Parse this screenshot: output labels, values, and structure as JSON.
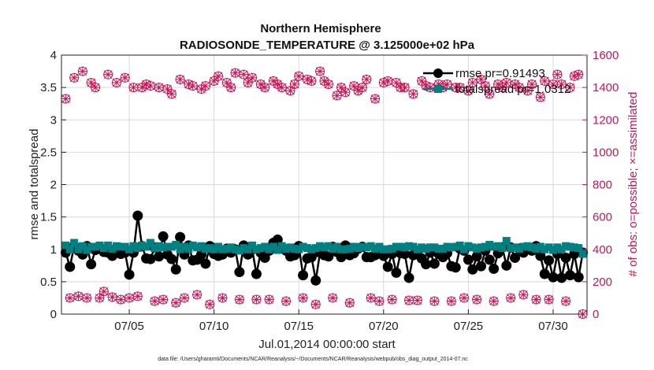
{
  "chart_data": {
    "type": "line",
    "title": "Northern Hemisphere",
    "subtitle": "RADIOSONDE_TEMPERATURE @ 3.125000e+02 hPa",
    "xlabel": "Jul.01,2014 00:00:00 start",
    "ylabel": "rmse and totalspread",
    "ylabel_right": "# of obs: o=possible; ×=assimilated",
    "footer": "data file: /Users/gharamti/Documents/NCAR/Reanalysis/~/Documents/NCAR/Reanalysis/webpub/obs_diag_output_2014-07.nc",
    "xlim": [
      1,
      32
    ],
    "ylim": [
      0,
      4
    ],
    "ylim_right": [
      0,
      1600
    ],
    "xticks": [
      5,
      10,
      15,
      20,
      25,
      30
    ],
    "xtick_labels": [
      "07/05",
      "07/10",
      "07/15",
      "07/20",
      "07/25",
      "07/30"
    ],
    "yticks": [
      "0",
      "0.5",
      "1",
      "1.5",
      "2",
      "2.5",
      "3",
      "3.5",
      "4"
    ],
    "yticks_right": [
      "0",
      "200",
      "400",
      "600",
      "800",
      "1000",
      "1200",
      "1400",
      "1600"
    ],
    "grid": true,
    "legend_position": "top-right",
    "colors": {
      "rmse": "#000000",
      "spread": "#008080",
      "obs": "#cc1455"
    },
    "series": [
      {
        "name": "rmse",
        "legend": "rmse pr=0.91493",
        "axis": "left",
        "x": [
          1.25,
          1.5,
          1.75,
          2,
          2.25,
          2.5,
          2.75,
          3,
          3.25,
          3.5,
          3.75,
          4,
          4.25,
          4.5,
          4.75,
          5,
          5.25,
          5.5,
          5.75,
          6,
          6.25,
          6.5,
          6.75,
          7,
          7.25,
          7.5,
          7.75,
          8,
          8.25,
          8.5,
          8.75,
          9,
          9.25,
          9.5,
          9.75,
          10,
          10.25,
          10.5,
          10.75,
          11,
          11.25,
          11.5,
          11.75,
          12,
          12.25,
          12.5,
          12.75,
          13,
          13.25,
          13.5,
          13.75,
          14,
          14.25,
          14.5,
          14.75,
          15,
          15.25,
          15.5,
          15.75,
          16,
          16.25,
          16.5,
          16.75,
          17,
          17.25,
          17.5,
          17.75,
          18,
          18.25,
          18.5,
          18.75,
          19,
          19.25,
          19.5,
          19.75,
          20,
          20.25,
          20.5,
          20.75,
          21,
          21.25,
          21.5,
          21.75,
          22,
          22.25,
          22.5,
          22.75,
          23,
          23.25,
          23.5,
          23.75,
          24,
          24.25,
          24.5,
          24.75,
          25,
          25.25,
          25.5,
          25.75,
          26,
          26.25,
          26.5,
          26.75,
          27,
          27.25,
          27.5,
          27.75,
          28,
          28.25,
          28.5,
          28.75,
          29,
          29.25,
          29.5,
          29.75,
          30,
          30.25,
          30.5,
          30.75,
          31,
          31.25,
          31.5,
          31.75
        ],
        "values": [
          0.95,
          0.73,
          1.05,
          0.98,
          0.92,
          1.05,
          0.77,
          0.99,
          1.04,
          0.96,
          0.95,
          0.9,
          0.99,
          0.93,
          0.95,
          0.61,
          0.95,
          1.52,
          1.05,
          0.86,
          0.85,
          1.03,
          0.89,
          1.2,
          0.92,
          0.85,
          0.69,
          1.19,
          0.92,
          1.06,
          0.83,
          0.84,
          0.92,
          0.78,
          1.05,
          0.93,
          0.9,
          0.92,
          1.01,
          0.95,
          1.0,
          0.65,
          1.06,
          0.92,
          1.0,
          0.62,
          0.95,
          0.87,
          0.98,
          1.1,
          1.15,
          1.03,
          0.98,
          0.89,
          0.91,
          1.05,
          0.6,
          0.86,
          0.88,
          0.52,
          0.95,
          0.91,
          0.89,
          1.04,
          0.96,
          0.88,
          1.06,
          0.91,
          0.94,
          1.01,
          1.04,
          0.88,
          0.88,
          0.91,
          0.98,
          0.9,
          0.73,
          0.93,
          0.64,
          0.94,
          0.93,
          0.56,
          0.91,
          0.93,
          0.86,
          0.77,
          0.95,
          0.78,
          0.93,
          0.88,
          0.94,
          0.74,
          0.72,
          1.01,
          0.98,
          0.84,
          0.69,
          0.89,
          0.74,
          0.98,
          0.84,
          0.7,
          0.94,
          1.03,
          0.75,
          1.03,
          0.87,
          1.01,
          0.95,
          1.01,
          0.98,
          1.05,
          0.9,
          0.62,
          0.83,
          0.57,
          0.93,
          0.56,
          0.87,
          0.6,
          0.93,
          0.57,
          0.95
        ]
      },
      {
        "name": "totalspread",
        "legend": "totalspread pr=1.0312",
        "axis": "left",
        "x": [
          1.25,
          1.5,
          1.75,
          2,
          2.25,
          2.5,
          2.75,
          3,
          3.25,
          3.5,
          3.75,
          4,
          4.25,
          4.5,
          4.75,
          5,
          5.25,
          5.5,
          5.75,
          6,
          6.25,
          6.5,
          6.75,
          7,
          7.25,
          7.5,
          7.75,
          8,
          8.25,
          8.5,
          8.75,
          9,
          9.25,
          9.5,
          9.75,
          10,
          10.25,
          10.5,
          10.75,
          11,
          11.25,
          11.5,
          11.75,
          12,
          12.25,
          12.5,
          12.75,
          13,
          13.25,
          13.5,
          13.75,
          14,
          14.25,
          14.5,
          14.75,
          15,
          15.25,
          15.5,
          15.75,
          16,
          16.25,
          16.5,
          16.75,
          17,
          17.25,
          17.5,
          17.75,
          18,
          18.25,
          18.5,
          18.75,
          19,
          19.25,
          19.5,
          19.75,
          20,
          20.25,
          20.5,
          20.75,
          21,
          21.25,
          21.5,
          21.75,
          22,
          22.25,
          22.5,
          22.75,
          23,
          23.25,
          23.5,
          23.75,
          24,
          24.25,
          24.5,
          24.75,
          25,
          25.25,
          25.5,
          25.75,
          26,
          26.25,
          26.5,
          26.75,
          27,
          27.25,
          27.5,
          27.75,
          28,
          28.25,
          28.5,
          28.75,
          29,
          29.25,
          29.5,
          29.75,
          30,
          30.25,
          30.5,
          30.75,
          31,
          31.25,
          31.5,
          31.75
        ],
        "values": [
          1.06,
          1.0,
          1.1,
          1.0,
          1.05,
          0.99,
          1.04,
          1.04,
          1.06,
          1.02,
          1.06,
          1.01,
          1.05,
          1.04,
          1.04,
          1.0,
          1.05,
          1.02,
          1.06,
          1.04,
          1.1,
          1.02,
          1.05,
          1.03,
          1.04,
          1.04,
          1.07,
          1.0,
          1.04,
          1.01,
          1.06,
          1.03,
          1.05,
          1.01,
          1.02,
          1.0,
          1.04,
          1.0,
          1.01,
          1.03,
          1.0,
          0.98,
          1.02,
          1.0,
          1.06,
          1.0,
          1.02,
          1.04,
          1.0,
          1.04,
          0.99,
          1.05,
          1.01,
          1.03,
          1.01,
          1.0,
          1.04,
          1.02,
          1.0,
          1.02,
          1.05,
          1.03,
          1.05,
          1.01,
          1.04,
          1.0,
          1.0,
          1.01,
          1.04,
          1.02,
          1.04,
          1.03,
          1.05,
          1.01,
          1.04,
          1.0,
          1.0,
          1.01,
          1.04,
          1.04,
          1.03,
          1.05,
          1.04,
          1.0,
          1.03,
          1.01,
          1.03,
          1.03,
          1.01,
          1.01,
          1.04,
          1.03,
          1.04,
          1.06,
          1.0,
          1.05,
          1.03,
          1.01,
          1.03,
          1.04,
          1.07,
          1.04,
          1.05,
          1.02,
          1.13,
          1.02,
          1.03,
          1.01,
          1.04,
          1.05,
          1.03,
          1.01,
          1.04,
          1.0,
          1.03,
          0.99,
          1.03,
          1.0,
          1.05,
          1.04,
          1.03,
          1.02,
          0.93
        ]
      },
      {
        "name": "possible",
        "axis": "right",
        "marker": "circle",
        "x": [
          1.25,
          1.5,
          1.75,
          2,
          2.25,
          2.5,
          2.75,
          3,
          3.25,
          3.5,
          3.75,
          4,
          4.25,
          4.5,
          4.75,
          5,
          5.25,
          5.5,
          5.75,
          6,
          6.25,
          6.5,
          6.75,
          7,
          7.25,
          7.5,
          7.75,
          8,
          8.25,
          8.5,
          8.75,
          9,
          9.25,
          9.5,
          9.75,
          10,
          10.25,
          10.5,
          10.75,
          11,
          11.25,
          11.5,
          11.75,
          12,
          12.25,
          12.5,
          12.75,
          13,
          13.25,
          13.5,
          13.75,
          14,
          14.25,
          14.5,
          14.75,
          15,
          15.25,
          15.5,
          15.75,
          16,
          16.25,
          16.5,
          16.75,
          17,
          17.25,
          17.5,
          17.75,
          18,
          18.25,
          18.5,
          18.75,
          19,
          19.25,
          19.5,
          19.75,
          20,
          20.25,
          20.5,
          20.75,
          21,
          21.25,
          21.5,
          21.75,
          22,
          22.25,
          22.5,
          22.75,
          23,
          23.25,
          23.5,
          23.75,
          24,
          24.25,
          24.5,
          24.75,
          25,
          25.25,
          25.5,
          25.75,
          26,
          26.25,
          26.5,
          26.75,
          27,
          27.25,
          27.5,
          27.75,
          28,
          28.25,
          28.5,
          28.75,
          29,
          29.25,
          29.5,
          29.75,
          30,
          30.25,
          30.5,
          30.75,
          31,
          31.25,
          31.5,
          31.75
        ],
        "values": [
          1330,
          100,
          1460,
          110,
          1500,
          100,
          1430,
          1400,
          100,
          140,
          1480,
          105,
          1430,
          90,
          1460,
          100,
          1400,
          110,
          1400,
          1420,
          1410,
          80,
          1400,
          90,
          1390,
          1360,
          70,
          1450,
          100,
          1420,
          1410,
          120,
          1390,
          1410,
          60,
          1440,
          1470,
          100,
          1430,
          1400,
          1490,
          90,
          1480,
          1430,
          1460,
          90,
          1420,
          1400,
          90,
          1440,
          1420,
          1400,
          80,
          1380,
          1420,
          1470,
          100,
          1450,
          1440,
          60,
          1500,
          1440,
          1420,
          100,
          1350,
          1400,
          1370,
          70,
          1410,
          1380,
          1400,
          1450,
          100,
          1330,
          80,
          1430,
          1440,
          90,
          1430,
          1400,
          1400,
          85,
          1360,
          85,
          1440,
          1410,
          1400,
          80,
          1420,
          1400,
          1420,
          80,
          1400,
          1400,
          100,
          1380,
          1430,
          90,
          1450,
          1410,
          1360,
          80,
          1420,
          1400,
          1430,
          100,
          1420,
          1400,
          120,
          1380,
          1420,
          90,
          1340,
          1440,
          90,
          1420,
          1480,
          1420,
          80,
          1400,
          1470,
          1480,
          0
        ]
      },
      {
        "name": "assimilated",
        "axis": "right",
        "marker": "x",
        "x": [
          1.25,
          1.5,
          1.75,
          2,
          2.25,
          2.5,
          2.75,
          3,
          3.25,
          3.5,
          3.75,
          4,
          4.25,
          4.5,
          4.75,
          5,
          5.25,
          5.5,
          5.75,
          6,
          6.25,
          6.5,
          6.75,
          7,
          7.25,
          7.5,
          7.75,
          8,
          8.25,
          8.5,
          8.75,
          9,
          9.25,
          9.5,
          9.75,
          10,
          10.25,
          10.5,
          10.75,
          11,
          11.25,
          11.5,
          11.75,
          12,
          12.25,
          12.5,
          12.75,
          13,
          13.25,
          13.5,
          13.75,
          14,
          14.25,
          14.5,
          14.75,
          15,
          15.25,
          15.5,
          15.75,
          16,
          16.25,
          16.5,
          16.75,
          17,
          17.25,
          17.5,
          17.75,
          18,
          18.25,
          18.5,
          18.75,
          19,
          19.25,
          19.5,
          19.75,
          20,
          20.25,
          20.5,
          20.75,
          21,
          21.25,
          21.5,
          21.75,
          22,
          22.25,
          22.5,
          22.75,
          23,
          23.25,
          23.5,
          23.75,
          24,
          24.25,
          24.5,
          24.75,
          25,
          25.25,
          25.5,
          25.75,
          26,
          26.25,
          26.5,
          26.75,
          27,
          27.25,
          27.5,
          27.75,
          28,
          28.25,
          28.5,
          28.75,
          29,
          29.25,
          29.5,
          29.75,
          30,
          30.25,
          30.5,
          30.75,
          31,
          31.25,
          31.5,
          31.75
        ],
        "values": [
          1330,
          100,
          1460,
          110,
          1500,
          100,
          1430,
          1400,
          100,
          140,
          1480,
          105,
          1430,
          90,
          1460,
          100,
          1400,
          110,
          1400,
          1420,
          1410,
          80,
          1400,
          90,
          1390,
          1360,
          70,
          1450,
          100,
          1420,
          1410,
          120,
          1390,
          1410,
          60,
          1440,
          1470,
          100,
          1430,
          1400,
          1490,
          90,
          1480,
          1430,
          1460,
          90,
          1420,
          1400,
          90,
          1440,
          1420,
          1400,
          80,
          1380,
          1420,
          1470,
          100,
          1450,
          1440,
          60,
          1500,
          1440,
          1420,
          100,
          1350,
          1400,
          1370,
          70,
          1410,
          1380,
          1400,
          1450,
          100,
          1330,
          80,
          1430,
          1440,
          90,
          1430,
          1400,
          1400,
          85,
          1360,
          85,
          1440,
          1410,
          1400,
          80,
          1420,
          1400,
          1420,
          80,
          1400,
          1400,
          100,
          1380,
          1430,
          90,
          1450,
          1410,
          1360,
          80,
          1420,
          1400,
          1430,
          100,
          1420,
          1400,
          120,
          1380,
          1420,
          90,
          1340,
          1440,
          90,
          1420,
          1480,
          1420,
          80,
          1400,
          1470,
          1480,
          0
        ]
      }
    ]
  }
}
